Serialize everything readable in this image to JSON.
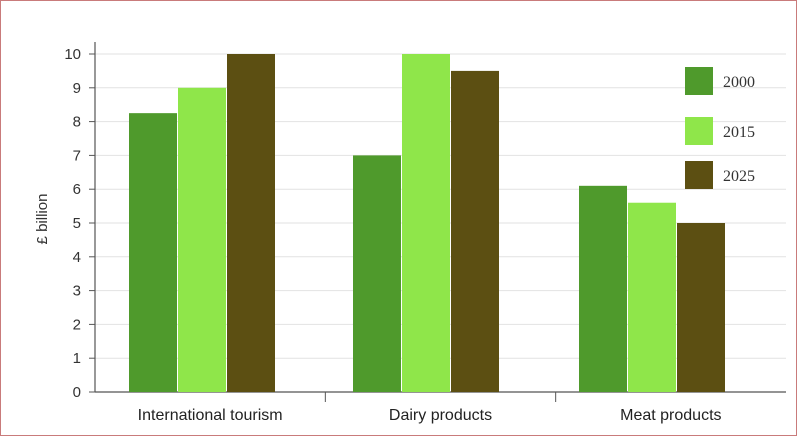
{
  "chart_data": {
    "type": "bar",
    "title": "",
    "xlabel": "",
    "ylabel": "£ billion",
    "ylim": [
      0,
      10
    ],
    "yticks": [
      "0",
      "1",
      "2",
      "3",
      "4",
      "5",
      "6",
      "7",
      "8",
      "9",
      "10"
    ],
    "categories": [
      "International tourism",
      "Dairy products",
      "Meat products"
    ],
    "series": [
      {
        "name": "2000",
        "color": "#4f9a2c",
        "values": [
          8.25,
          7.0,
          6.1
        ]
      },
      {
        "name": "2015",
        "color": "#8fe64a",
        "values": [
          9.0,
          10.0,
          5.6
        ]
      },
      {
        "name": "2025",
        "color": "#5c4f12",
        "values": [
          10.0,
          9.5,
          5.0
        ]
      }
    ],
    "grid": true,
    "legend_position": "right"
  }
}
